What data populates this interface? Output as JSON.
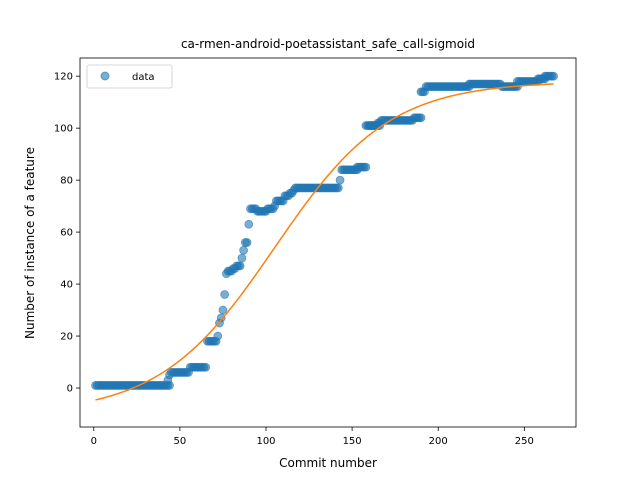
{
  "chart_data": {
    "type": "scatter",
    "title": "ca-rmen-android-poetassistant_safe_call-sigmoid",
    "xlabel": "Commit number",
    "ylabel": "Number of instance of a feature",
    "xlim": [
      -8,
      280
    ],
    "ylim": [
      -15,
      127
    ],
    "x_ticks": [
      0,
      50,
      100,
      150,
      200,
      250
    ],
    "y_ticks": [
      0,
      20,
      40,
      60,
      80,
      100,
      120
    ],
    "grid": false,
    "legend": {
      "placement": "top-left",
      "entries": [
        "data"
      ]
    },
    "colors": {
      "data": "#1f77b4",
      "fit": "#ff7f0e"
    },
    "series": [
      {
        "name": "data",
        "kind": "points",
        "segments": [
          [
            1,
            44,
            1
          ],
          [
            45,
            50,
            6
          ],
          [
            51,
            55,
            6
          ],
          [
            56,
            65,
            8
          ],
          [
            66,
            71,
            18
          ],
          [
            121,
            142,
            77
          ],
          [
            145,
            153,
            84
          ],
          [
            153,
            158,
            85
          ],
          [
            158,
            166,
            101
          ],
          [
            167,
            185,
            103
          ],
          [
            188,
            190,
            104
          ],
          [
            190,
            192,
            114
          ],
          [
            193,
            218,
            116
          ],
          [
            218,
            236,
            117
          ],
          [
            237,
            246,
            116
          ],
          [
            246,
            258,
            118
          ],
          [
            258,
            262,
            119
          ],
          [
            262,
            267,
            120
          ]
        ],
        "points": [
          [
            43,
            3
          ],
          [
            44,
            5
          ],
          [
            72,
            20
          ],
          [
            73,
            25
          ],
          [
            74,
            27
          ],
          [
            75,
            30
          ],
          [
            76,
            36
          ],
          [
            77,
            44
          ],
          [
            78,
            45
          ],
          [
            79,
            45
          ],
          [
            80,
            45
          ],
          [
            81,
            46
          ],
          [
            82,
            46
          ],
          [
            83,
            47
          ],
          [
            84,
            47
          ],
          [
            85,
            47
          ],
          [
            86,
            50
          ],
          [
            87,
            53
          ],
          [
            88,
            56
          ],
          [
            89,
            56
          ],
          [
            90,
            63
          ],
          [
            91,
            69
          ],
          [
            92,
            69
          ],
          [
            93,
            69
          ],
          [
            94,
            69
          ],
          [
            95,
            68
          ],
          [
            96,
            68
          ],
          [
            97,
            68
          ],
          [
            98,
            68
          ],
          [
            99,
            68
          ],
          [
            100,
            68
          ],
          [
            101,
            69
          ],
          [
            102,
            69
          ],
          [
            103,
            69
          ],
          [
            104,
            69
          ],
          [
            105,
            70
          ],
          [
            106,
            72
          ],
          [
            107,
            72
          ],
          [
            108,
            72
          ],
          [
            109,
            72
          ],
          [
            110,
            72
          ],
          [
            111,
            74
          ],
          [
            112,
            74
          ],
          [
            113,
            74
          ],
          [
            114,
            75
          ],
          [
            115,
            75
          ],
          [
            116,
            76
          ],
          [
            117,
            77
          ],
          [
            118,
            77
          ],
          [
            119,
            77
          ],
          [
            120,
            77
          ],
          [
            143,
            80
          ],
          [
            144,
            84
          ],
          [
            160,
            101
          ],
          [
            161,
            101
          ],
          [
            162,
            101
          ],
          [
            163,
            101
          ],
          [
            164,
            101
          ],
          [
            165,
            102
          ],
          [
            166,
            102
          ],
          [
            186,
            104
          ],
          [
            187,
            104
          ]
        ]
      },
      {
        "name": "fit",
        "kind": "line",
        "x_range": [
          1,
          267
        ],
        "sigmoid": {
          "L": 128,
          "k": 0.03,
          "x0": 105,
          "b": -10
        }
      }
    ]
  }
}
